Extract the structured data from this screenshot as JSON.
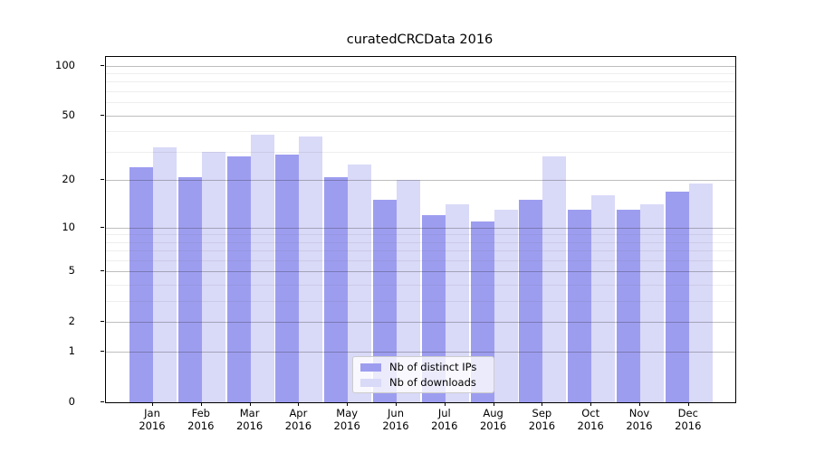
{
  "title": "curatedCRCData 2016",
  "chart_data": {
    "type": "bar",
    "title": "curatedCRCData 2016",
    "categories": [
      "Jan",
      "Feb",
      "Mar",
      "Apr",
      "May",
      "Jun",
      "Jul",
      "Aug",
      "Sep",
      "Oct",
      "Nov",
      "Dec"
    ],
    "category_year": "2016",
    "series": [
      {
        "name": "Nb of distinct IPs",
        "color": "#9d9df0",
        "values": [
          24,
          21,
          28,
          29,
          21,
          15,
          12,
          11,
          15,
          13,
          13,
          17
        ]
      },
      {
        "name": "Nb of downloads",
        "color": "#d9d9f8",
        "values": [
          32,
          30,
          38,
          37,
          25,
          20,
          14,
          13,
          28,
          16,
          14,
          19
        ]
      }
    ],
    "xlabel": "",
    "ylabel": "",
    "y_axis": {
      "scale": "log1p",
      "ticks": [
        0,
        1,
        2,
        5,
        10,
        20,
        50,
        100
      ],
      "tick_labels": [
        "0",
        "1",
        "2",
        "5",
        "10",
        "20",
        "50",
        "100"
      ],
      "minor_gridlines": [
        3,
        4,
        6,
        7,
        8,
        9,
        30,
        40,
        60,
        70,
        80,
        90
      ],
      "ylim": [
        0,
        112
      ]
    },
    "grid": true,
    "legend_position": "lower center (inside plot)"
  },
  "legend": {
    "items": [
      {
        "label": "Nb of distinct IPs"
      },
      {
        "label": "Nb of downloads"
      }
    ]
  }
}
